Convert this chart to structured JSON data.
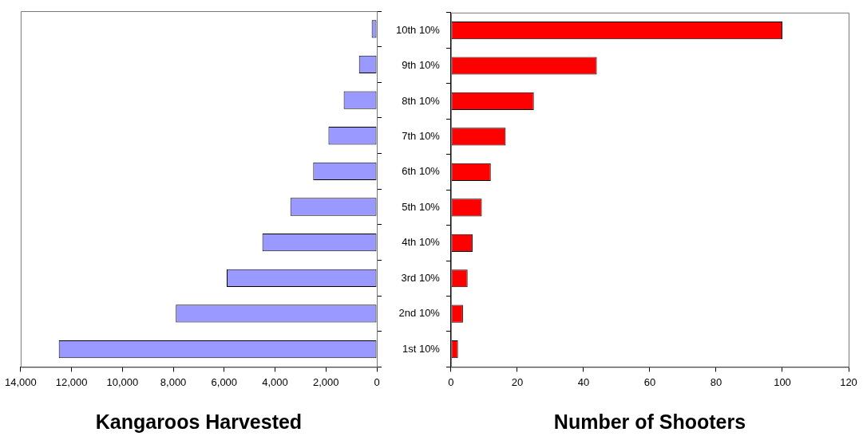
{
  "chart_data": [
    {
      "type": "bar",
      "orientation": "horizontal",
      "categories": [
        null,
        null,
        null,
        null,
        null,
        null,
        null,
        null,
        null,
        null
      ],
      "values": [
        200,
        700,
        1300,
        1900,
        2500,
        3400,
        4500,
        5900,
        7900,
        12500
      ],
      "color": "#9999ff",
      "xlabel": "Kangaroos Harvested",
      "xlim": [
        14000,
        0
      ],
      "xticks": [
        {
          "value": 14000,
          "label": "14,000"
        },
        {
          "value": 12000,
          "label": "12,000"
        },
        {
          "value": 10000,
          "label": "10,000"
        },
        {
          "value": 8000,
          "label": "8,000"
        },
        {
          "value": 6000,
          "label": "6,000"
        },
        {
          "value": 4000,
          "label": "4,000"
        },
        {
          "value": 2000,
          "label": "2,000"
        },
        0
      ],
      "tick_labels": "x",
      "grid": false,
      "legend": false
    },
    {
      "type": "bar",
      "orientation": "horizontal",
      "categories": [
        "10th 10%",
        "9th 10%",
        "8th 10%",
        "7th 10%",
        "6th 10%",
        "5th 10%",
        "4th 10%",
        "3rd 10%",
        "2nd 10%",
        "1st 10%"
      ],
      "values": [
        100,
        44,
        25,
        16.5,
        12,
        9.3,
        6.5,
        5,
        3.6,
        2.1
      ],
      "color": "#ff0000",
      "xlabel": "Number of Shooters",
      "xlim": [
        0,
        120
      ],
      "xticks": [
        0,
        20,
        40,
        60,
        80,
        100,
        120
      ],
      "grid": false,
      "legend": false
    }
  ]
}
